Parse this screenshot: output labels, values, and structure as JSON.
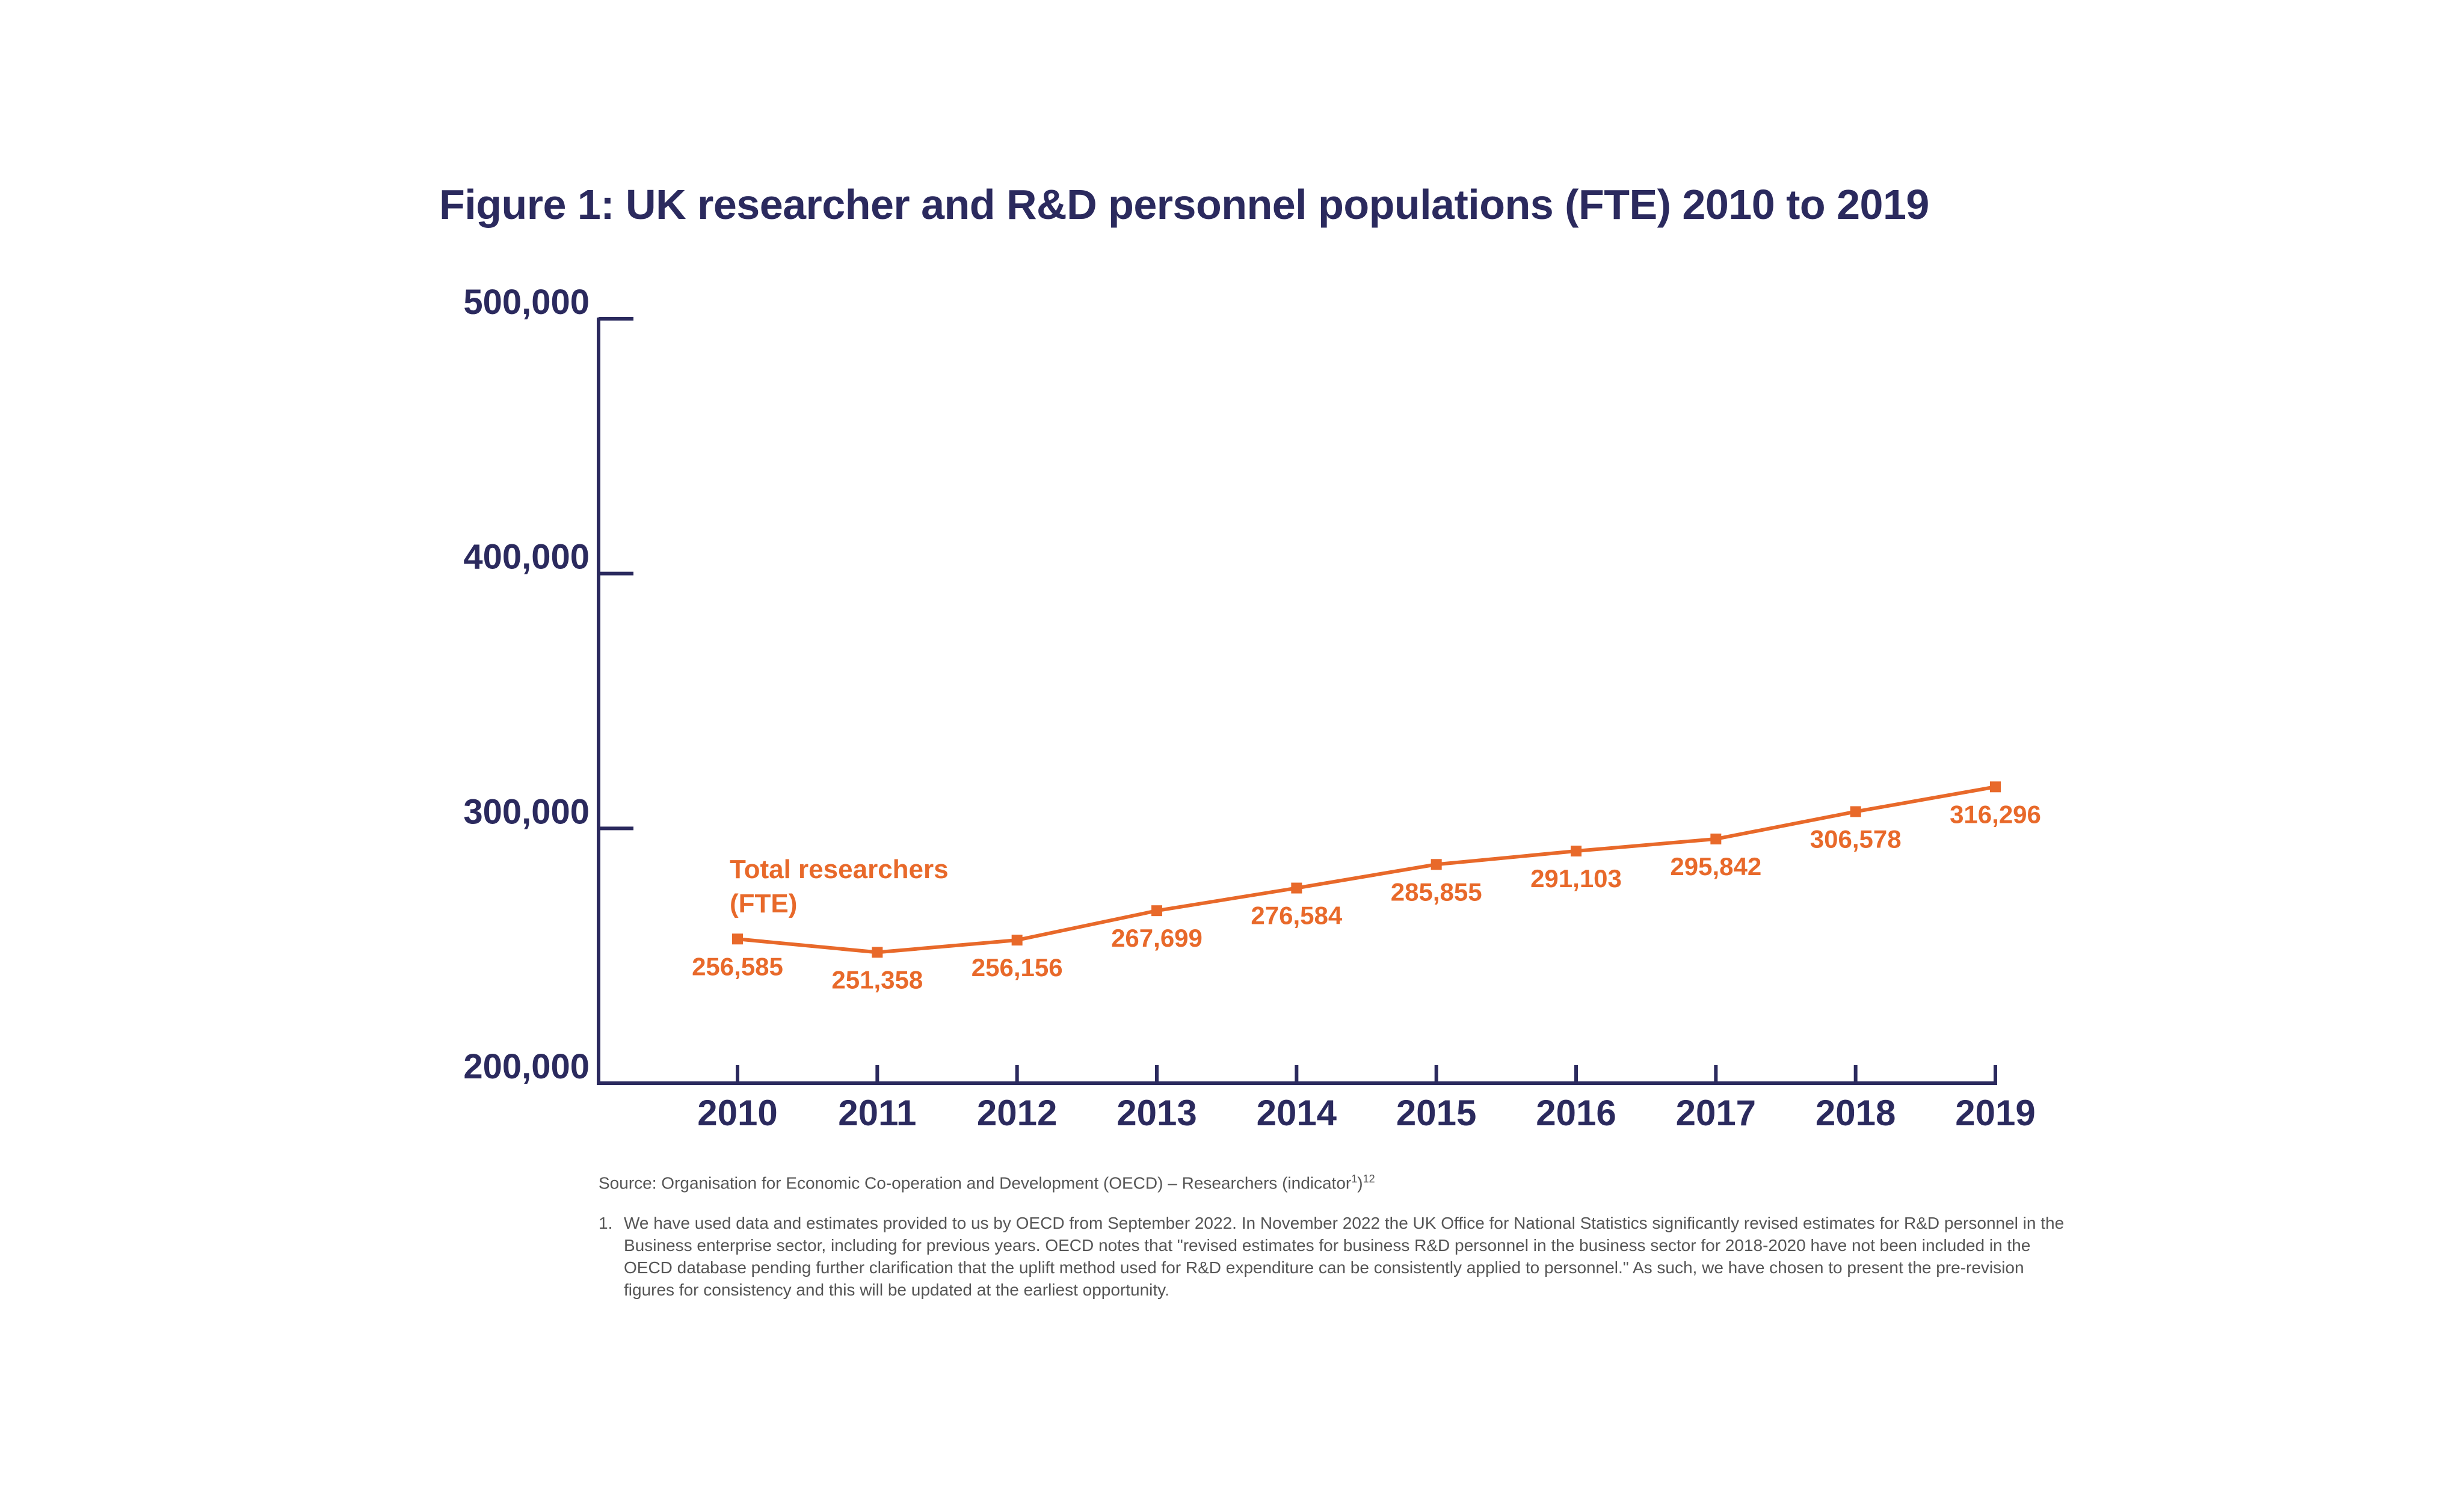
{
  "chart_data": {
    "type": "line",
    "title": "Figure 1: UK researcher and R&D personnel populations (FTE) 2010 to 2019",
    "xlabel": "",
    "ylabel": "",
    "categories": [
      "2010",
      "2011",
      "2012",
      "2013",
      "2014",
      "2015",
      "2016",
      "2017",
      "2018",
      "2019"
    ],
    "series": [
      {
        "name": "Total researchers (FTE)",
        "values": [
          256585,
          251358,
          256156,
          267699,
          276584,
          285855,
          291103,
          295842,
          306578,
          316296
        ],
        "color": "#e8692a"
      }
    ],
    "data_labels": [
      "256,585",
      "251,358",
      "256,156",
      "267,699",
      "276,584",
      "285,855",
      "291,103",
      "295,842",
      "306,578",
      "316,296"
    ],
    "ylim": [
      200000,
      500000
    ],
    "yticks": [
      200000,
      300000,
      400000,
      500000
    ],
    "ytick_labels": [
      "200,000",
      "300,000",
      "400,000",
      "500,000"
    ],
    "grid": false,
    "legend": "inline label near start of series",
    "axis_color": "#2b2a5e"
  },
  "series_label_lines": [
    "Total researchers",
    "(FTE)"
  ],
  "source": {
    "text": "Source: Organisation for Economic Co-operation and Development (OECD) – Researchers (indicator",
    "sup1": "1",
    "close": ")",
    "sup2": "12"
  },
  "footnote": {
    "number": "1.",
    "text": "We have used data and estimates provided to us by OECD from September 2022. In November 2022 the UK Office for National Statistics significantly revised estimates for R&D personnel in the Business enterprise sector, including for previous years. OECD notes that \"revised estimates for business R&D personnel in the business sector for 2018-2020 have not been included in the OECD database pending further clarification that the uplift method used for R&D expenditure can be consistently applied to personnel.\" As such, we have chosen to present the pre-revision figures for consistency and this will be updated at the earliest opportunity."
  }
}
